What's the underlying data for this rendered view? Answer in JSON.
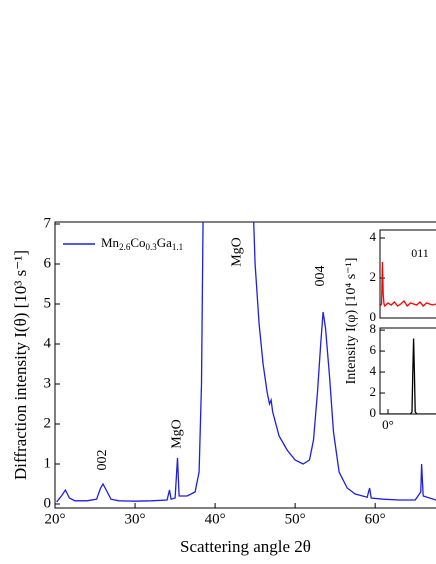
{
  "chart_data": [
    {
      "type": "line",
      "xlabel": "Scattering angle 2θ",
      "ylabel": "Diffraction intensity  I(θ)  [10³ s⁻¹]",
      "xlim": [
        20,
        67.6
      ],
      "ylim": [
        -0.1,
        7.05
      ],
      "xticks": [
        {
          "value": 20,
          "label": "20°"
        },
        {
          "value": 30,
          "label": "30°"
        },
        {
          "value": 40,
          "label": "40°"
        },
        {
          "value": 50,
          "label": "50°"
        },
        {
          "value": 60,
          "label": "60°"
        }
      ],
      "yticks": [
        0,
        1,
        2,
        3,
        4,
        5,
        6,
        7
      ],
      "legend": "upper left",
      "series": [
        {
          "name": "Mn2.6Co0.3Ga1.1",
          "color": "#1f1fe0",
          "x": [
            20.2,
            20.8,
            21.3,
            21.8,
            22.5,
            24,
            25.2,
            25.7,
            26,
            26.4,
            27,
            28,
            30,
            32,
            34,
            34.3,
            34.5,
            35,
            35.3,
            35.5,
            36.5,
            37.5,
            38,
            38.3,
            38.5,
            44.8,
            45,
            45.5,
            46,
            46.5,
            46.8,
            47,
            47.2,
            48,
            49,
            50,
            51,
            51.8,
            52.3,
            52.8,
            53.2,
            53.5,
            53.8,
            54.3,
            54.8,
            55.5,
            56.5,
            57.5,
            59,
            59.3,
            59.5,
            61,
            63,
            65,
            65.7,
            65.8,
            66,
            67.6
          ],
          "values": [
            0.05,
            0.2,
            0.35,
            0.15,
            0.08,
            0.08,
            0.12,
            0.4,
            0.5,
            0.35,
            0.12,
            0.08,
            0.07,
            0.08,
            0.1,
            0.35,
            0.12,
            0.15,
            1.15,
            0.2,
            0.2,
            0.3,
            0.8,
            3,
            7.2,
            7.2,
            6,
            4.5,
            3.5,
            2.8,
            2.5,
            2.6,
            2.3,
            1.7,
            1.35,
            1.1,
            1.0,
            1.1,
            1.6,
            2.8,
            4.0,
            4.8,
            4.4,
            3.2,
            1.8,
            0.8,
            0.4,
            0.25,
            0.17,
            0.4,
            0.15,
            0.12,
            0.1,
            0.1,
            0.3,
            1.0,
            0.2,
            0.1
          ]
        }
      ],
      "annotations": [
        {
          "text": "002",
          "x": 26,
          "y": 1.1,
          "color": "#1f1fe0"
        },
        {
          "text": "MgO",
          "x": 35.3,
          "y": 1.75,
          "color": "#000000"
        },
        {
          "text": "MgO",
          "x": 42.8,
          "y": 6.3,
          "color": "#000000"
        },
        {
          "text": "004",
          "x": 53.2,
          "y": 5.7,
          "color": "#1f1fe0"
        }
      ]
    },
    {
      "type": "line",
      "ylabel": "Intensity I(φ) [10⁴ s⁻¹]",
      "xlim": [
        -5,
        30
      ],
      "ylim": [
        0,
        4.4
      ],
      "yticks": [
        0,
        2,
        4
      ],
      "series": [
        {
          "color": "#ff0000",
          "x": [
            -5,
            -4,
            -3.5,
            -3,
            -2.5,
            -2,
            0,
            2,
            4,
            6,
            8,
            10,
            12,
            14,
            16,
            18,
            20,
            22,
            24,
            26,
            28,
            30
          ],
          "values": [
            0.6,
            0.7,
            2.8,
            1.2,
            0.7,
            0.6,
            0.75,
            0.65,
            0.8,
            0.6,
            0.7,
            0.85,
            0.6,
            0.75,
            0.7,
            0.65,
            0.8,
            0.6,
            0.75,
            0.7,
            0.65,
            0.7
          ]
        }
      ],
      "annotations": [
        {
          "text": "011",
          "x": 20,
          "y": 3.2,
          "color": "#000000"
        }
      ]
    },
    {
      "type": "line",
      "xlim": [
        -5,
        30
      ],
      "ylim": [
        0,
        8.2
      ],
      "yticks": [
        0,
        2,
        4,
        6,
        8
      ],
      "xticks": [
        {
          "value": 0,
          "label": "0°"
        }
      ],
      "series": [
        {
          "color": "#000000",
          "x": [
            -5,
            14,
            15,
            15.5,
            16,
            16.5,
            17,
            18,
            30
          ],
          "values": [
            0,
            0,
            0.2,
            4,
            7.2,
            4,
            0.2,
            0,
            0
          ]
        }
      ]
    }
  ]
}
